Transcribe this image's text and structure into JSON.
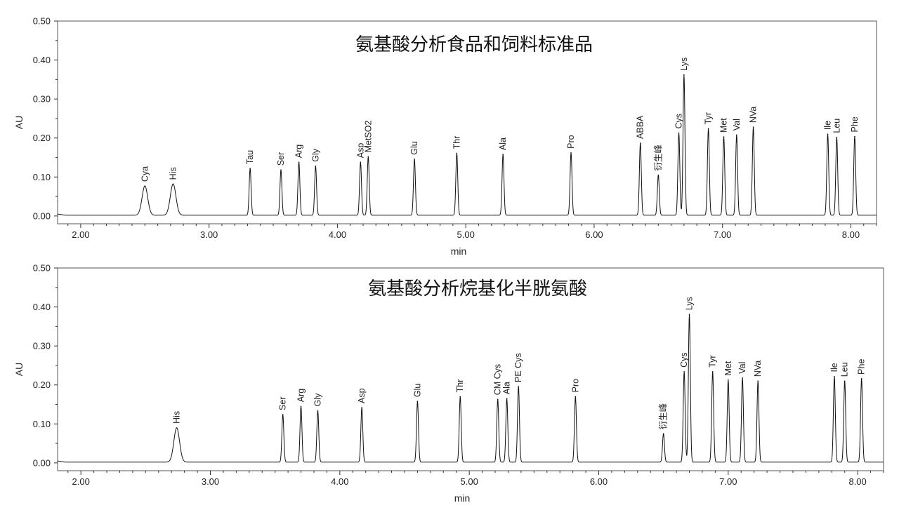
{
  "chart_data": [
    {
      "type": "line",
      "title": "氨基酸分析食品和饲料标准品",
      "xlabel": "min",
      "ylabel": "AU",
      "xlim": [
        1.82,
        8.2
      ],
      "ylim": [
        -0.02,
        0.5
      ],
      "x_ticks": [
        "2.00",
        "3.00",
        "4.00",
        "5.00",
        "6.00",
        "7.00",
        "8.00"
      ],
      "y_ticks": [
        "0.00",
        "0.10",
        "0.20",
        "0.30",
        "0.40",
        "0.50"
      ],
      "grid": false,
      "peaks": [
        {
          "label": "Cya",
          "x": 2.5,
          "y": 0.077
        },
        {
          "label": "His",
          "x": 2.72,
          "y": 0.082
        },
        {
          "label": "Tau",
          "x": 3.32,
          "y": 0.122
        },
        {
          "label": "Ser",
          "x": 3.56,
          "y": 0.118
        },
        {
          "label": "Arg",
          "x": 3.7,
          "y": 0.138
        },
        {
          "label": "Gly",
          "x": 3.83,
          "y": 0.128
        },
        {
          "label": "Asp",
          "x": 4.18,
          "y": 0.138
        },
        {
          "label": "MetSO2",
          "x": 4.24,
          "y": 0.152
        },
        {
          "label": "Glu",
          "x": 4.6,
          "y": 0.146
        },
        {
          "label": "Thr",
          "x": 4.93,
          "y": 0.161
        },
        {
          "label": "Ala",
          "x": 5.29,
          "y": 0.158
        },
        {
          "label": "Pro",
          "x": 5.82,
          "y": 0.162
        },
        {
          "label": "ABBA",
          "x": 6.36,
          "y": 0.187
        },
        {
          "label": "衍生峰",
          "x": 6.5,
          "y": 0.105
        },
        {
          "label": "Cys",
          "x": 6.66,
          "y": 0.213
        },
        {
          "label": "Lys",
          "x": 6.7,
          "y": 0.362
        },
        {
          "label": "Tyr",
          "x": 6.89,
          "y": 0.224
        },
        {
          "label": "Met",
          "x": 7.01,
          "y": 0.203
        },
        {
          "label": "Val",
          "x": 7.11,
          "y": 0.208
        },
        {
          "label": "NVa",
          "x": 7.24,
          "y": 0.228
        },
        {
          "label": "Ile",
          "x": 7.82,
          "y": 0.21
        },
        {
          "label": "Leu",
          "x": 7.89,
          "y": 0.202
        },
        {
          "label": "Phe",
          "x": 8.03,
          "y": 0.204
        }
      ]
    },
    {
      "type": "line",
      "title": "氨基酸分析烷基化半胱氨酸",
      "xlabel": "min",
      "ylabel": "AU",
      "xlim": [
        1.82,
        8.2
      ],
      "ylim": [
        -0.02,
        0.5
      ],
      "x_ticks": [
        "2.00",
        "3.00",
        "4.00",
        "5.00",
        "6.00",
        "7.00",
        "8.00"
      ],
      "y_ticks": [
        "0.00",
        "0.10",
        "0.20",
        "0.30",
        "0.40",
        "0.50"
      ],
      "grid": false,
      "peaks": [
        {
          "label": "His",
          "x": 2.74,
          "y": 0.09
        },
        {
          "label": "Ser",
          "x": 3.56,
          "y": 0.124
        },
        {
          "label": "Arg",
          "x": 3.7,
          "y": 0.145
        },
        {
          "label": "Gly",
          "x": 3.83,
          "y": 0.134
        },
        {
          "label": "Asp",
          "x": 4.17,
          "y": 0.142
        },
        {
          "label": "Glu",
          "x": 4.6,
          "y": 0.158
        },
        {
          "label": "Thr",
          "x": 4.93,
          "y": 0.17
        },
        {
          "label": "CM Cys",
          "x": 5.22,
          "y": 0.163
        },
        {
          "label": "Ala",
          "x": 5.29,
          "y": 0.165
        },
        {
          "label": "PE Cys",
          "x": 5.38,
          "y": 0.196
        },
        {
          "label": "Pro",
          "x": 5.82,
          "y": 0.17
        },
        {
          "label": "衍生峰",
          "x": 6.5,
          "y": 0.075
        },
        {
          "label": "Cys",
          "x": 6.66,
          "y": 0.234
        },
        {
          "label": "Lys",
          "x": 6.7,
          "y": 0.381
        },
        {
          "label": "Tyr",
          "x": 6.88,
          "y": 0.234
        },
        {
          "label": "Met",
          "x": 7.0,
          "y": 0.213
        },
        {
          "label": "Val",
          "x": 7.11,
          "y": 0.218
        },
        {
          "label": "NVa",
          "x": 7.23,
          "y": 0.21
        },
        {
          "label": "Ile",
          "x": 7.82,
          "y": 0.222
        },
        {
          "label": "Leu",
          "x": 7.9,
          "y": 0.21
        },
        {
          "label": "Phe",
          "x": 8.03,
          "y": 0.216
        }
      ]
    }
  ]
}
